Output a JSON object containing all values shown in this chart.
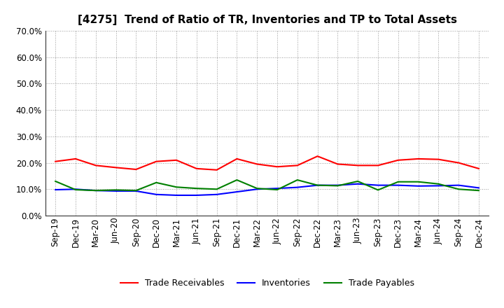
{
  "title": "[4275]  Trend of Ratio of TR, Inventories and TP to Total Assets",
  "x_labels": [
    "Sep-19",
    "Dec-19",
    "Mar-20",
    "Jun-20",
    "Sep-20",
    "Dec-20",
    "Mar-21",
    "Jun-21",
    "Sep-21",
    "Dec-21",
    "Mar-22",
    "Jun-22",
    "Sep-22",
    "Dec-22",
    "Mar-23",
    "Jun-23",
    "Sep-23",
    "Dec-23",
    "Mar-24",
    "Jun-24",
    "Sep-24",
    "Dec-24"
  ],
  "trade_receivables": [
    0.205,
    0.215,
    0.19,
    0.182,
    0.175,
    0.205,
    0.21,
    0.178,
    0.173,
    0.215,
    0.195,
    0.185,
    0.19,
    0.225,
    0.195,
    0.19,
    0.19,
    0.21,
    0.215,
    0.213,
    0.2,
    0.178
  ],
  "inventories": [
    0.098,
    0.1,
    0.095,
    0.093,
    0.093,
    0.08,
    0.077,
    0.077,
    0.08,
    0.09,
    0.1,
    0.103,
    0.107,
    0.115,
    0.115,
    0.12,
    0.115,
    0.115,
    0.112,
    0.113,
    0.115,
    0.105
  ],
  "trade_payables": [
    0.13,
    0.098,
    0.095,
    0.097,
    0.095,
    0.125,
    0.108,
    0.103,
    0.1,
    0.135,
    0.103,
    0.098,
    0.135,
    0.115,
    0.113,
    0.13,
    0.097,
    0.128,
    0.128,
    0.12,
    0.1,
    0.095
  ],
  "line_colors": {
    "trade_receivables": "#FF0000",
    "inventories": "#0000FF",
    "trade_payables": "#008000"
  },
  "legend_labels": {
    "trade_receivables": "Trade Receivables",
    "inventories": "Inventories",
    "trade_payables": "Trade Payables"
  },
  "ylim": [
    0.0,
    0.7
  ],
  "yticks": [
    0.0,
    0.1,
    0.2,
    0.3,
    0.4,
    0.5,
    0.6,
    0.7
  ],
  "background_color": "#FFFFFF",
  "grid_color": "#999999",
  "title_fontsize": 11,
  "tick_fontsize": 8.5,
  "legend_fontsize": 9
}
